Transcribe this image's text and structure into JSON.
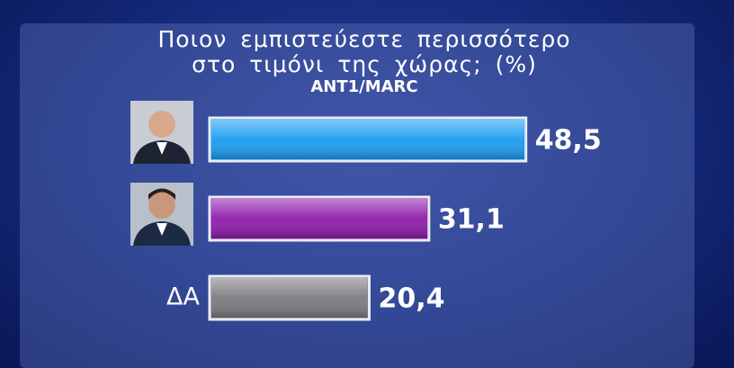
{
  "chart_data": {
    "type": "bar",
    "orientation": "horizontal",
    "title": "Ποιον εμπιστεύεστε περισσότερο στο τιμόνι της χώρας; (%)",
    "subtitle": "ANT1/MARC",
    "categories": [
      null,
      null,
      "ΔΑ"
    ],
    "series": [
      {
        "values": [
          48.5,
          31.1,
          20.4
        ],
        "value_labels": [
          "48,5",
          "31,1",
          "20,4"
        ],
        "colors": [
          "#1b9df2",
          "#8e1cab",
          "#7c7c80"
        ]
      }
    ]
  }
}
